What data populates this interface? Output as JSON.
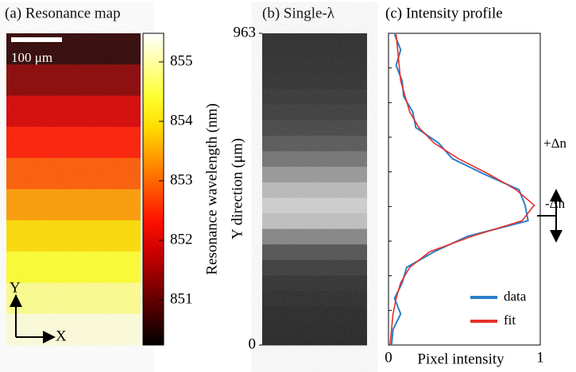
{
  "chart_data": [
    {
      "type": "heatmap",
      "title": "(a) Resonance map",
      "scale_bar": "100 μm",
      "axis_y": "Y",
      "axis_x": "X",
      "colorbar_label": "Resonance wavelength (nm)",
      "colormap": "hot",
      "values": [
        850.6,
        851.3,
        851.9,
        852.4,
        852.9,
        853.4,
        853.9,
        854.4,
        854.9,
        855.3
      ],
      "clim": [
        850.24,
        855.48
      ],
      "cticks": [
        851,
        852,
        853,
        854,
        855
      ]
    },
    {
      "type": "image",
      "title": "(b) Single-λ",
      "ylabel": "Y direction (μm)",
      "ylim": [
        0,
        963
      ],
      "yticks": [
        0,
        963
      ]
    },
    {
      "type": "line",
      "title": "(c) Intensity profile",
      "xlabel": "Pixel intensity",
      "xlim": [
        0,
        1
      ],
      "xticks": [
        0,
        1
      ],
      "ylim": [
        0,
        963
      ],
      "orientation": "vertical",
      "x": [
        0,
        48,
        96,
        144,
        192,
        240,
        288,
        336,
        384,
        432,
        480,
        528,
        576,
        624,
        672,
        720,
        768,
        816,
        864,
        912,
        960
      ],
      "series": [
        {
          "name": "data",
          "color": "#2a7fc9",
          "values": [
            0.02,
            0.03,
            0.08,
            0.04,
            0.09,
            0.12,
            0.3,
            0.52,
            0.92,
            0.9,
            0.86,
            0.63,
            0.42,
            0.33,
            0.18,
            0.16,
            0.1,
            0.09,
            0.05,
            0.08,
            0.04
          ]
        },
        {
          "name": "fit",
          "color": "#e8302a",
          "values": [
            0.01,
            0.02,
            0.03,
            0.05,
            0.08,
            0.14,
            0.27,
            0.55,
            0.88,
            0.96,
            0.84,
            0.66,
            0.46,
            0.3,
            0.2,
            0.14,
            0.11,
            0.08,
            0.07,
            0.06,
            0.05
          ]
        }
      ],
      "annotations": [
        "+Δn",
        "-Δn"
      ]
    }
  ]
}
